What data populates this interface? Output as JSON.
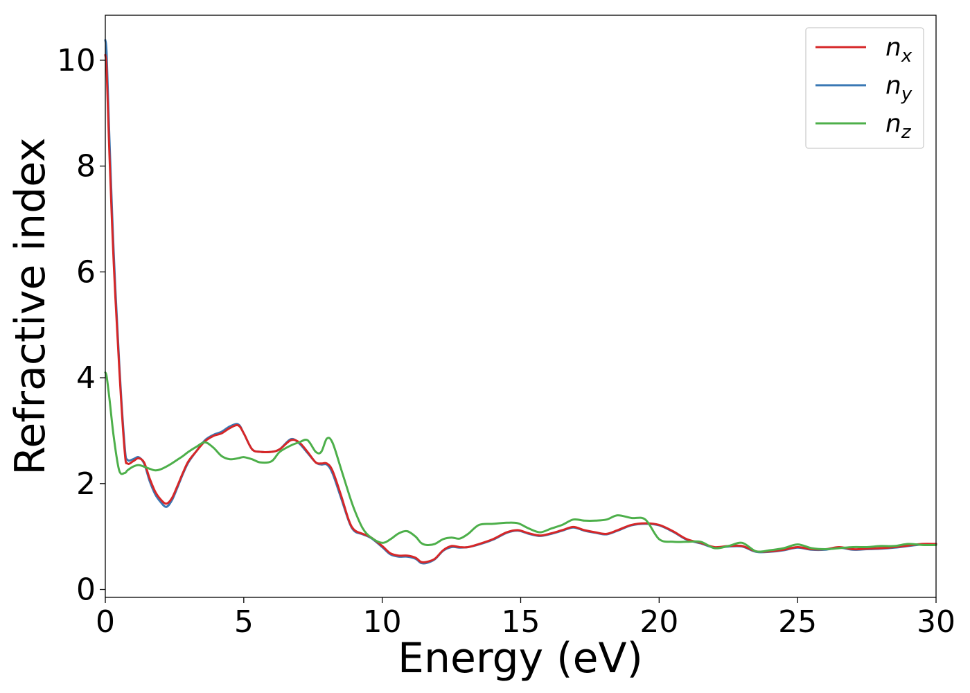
{
  "chart_data": {
    "type": "line",
    "title": "",
    "xlabel": "Energy (eV)",
    "ylabel": "Refractive index",
    "xlim": [
      0,
      30
    ],
    "ylim": [
      -0.15,
      10.85
    ],
    "xticks": [
      0,
      5,
      10,
      15,
      20,
      25,
      30
    ],
    "yticks": [
      0,
      2,
      4,
      6,
      8,
      10
    ],
    "grid": false,
    "legend": "top-right",
    "series": [
      {
        "name": "n",
        "subscript": "x",
        "color": "#d62728",
        "x": [
          0,
          0.05,
          0.15,
          0.3,
          0.5,
          0.7,
          0.8,
          1.0,
          1.2,
          1.4,
          1.6,
          1.8,
          2.0,
          2.2,
          2.4,
          2.6,
          2.8,
          3.0,
          3.3,
          3.6,
          3.9,
          4.2,
          4.5,
          4.8,
          5.0,
          5.3,
          5.6,
          6.0,
          6.3,
          6.7,
          7.0,
          7.3,
          7.6,
          7.8,
          8.0,
          8.2,
          8.5,
          8.8,
          9.0,
          9.3,
          9.6,
          10.0,
          10.3,
          10.6,
          10.9,
          11.2,
          11.4,
          11.6,
          11.9,
          12.2,
          12.5,
          12.8,
          13.1,
          13.5,
          14.0,
          14.5,
          14.9,
          15.3,
          15.7,
          16.1,
          16.5,
          16.9,
          17.3,
          17.7,
          18.1,
          18.5,
          19.0,
          19.5,
          20.0,
          20.5,
          21.0,
          21.5,
          22.0,
          22.5,
          23.0,
          23.5,
          24.0,
          24.5,
          25.0,
          25.5,
          26.0,
          26.5,
          27.0,
          27.5,
          28.0,
          28.5,
          29.0,
          29.5,
          30.0
        ],
        "values": [
          10.1,
          9.8,
          8.2,
          6.2,
          4.2,
          2.6,
          2.38,
          2.42,
          2.48,
          2.4,
          2.1,
          1.85,
          1.7,
          1.62,
          1.72,
          1.95,
          2.2,
          2.42,
          2.62,
          2.8,
          2.9,
          2.95,
          3.05,
          3.1,
          2.95,
          2.65,
          2.6,
          2.6,
          2.65,
          2.82,
          2.78,
          2.6,
          2.4,
          2.38,
          2.38,
          2.25,
          1.8,
          1.3,
          1.12,
          1.05,
          0.98,
          0.82,
          0.68,
          0.64,
          0.64,
          0.6,
          0.52,
          0.52,
          0.58,
          0.74,
          0.82,
          0.8,
          0.8,
          0.86,
          0.95,
          1.08,
          1.12,
          1.06,
          1.02,
          1.06,
          1.12,
          1.18,
          1.12,
          1.08,
          1.05,
          1.12,
          1.22,
          1.25,
          1.22,
          1.1,
          0.95,
          0.88,
          0.8,
          0.82,
          0.82,
          0.72,
          0.72,
          0.75,
          0.8,
          0.76,
          0.76,
          0.8,
          0.76,
          0.77,
          0.78,
          0.8,
          0.83,
          0.86,
          0.86
        ]
      },
      {
        "name": "n",
        "subscript": "y",
        "color": "#3a78b4",
        "x": [
          0,
          0.05,
          0.15,
          0.3,
          0.5,
          0.7,
          0.8,
          1.0,
          1.2,
          1.4,
          1.6,
          1.8,
          2.0,
          2.2,
          2.4,
          2.6,
          2.8,
          3.0,
          3.3,
          3.6,
          3.9,
          4.2,
          4.5,
          4.8,
          5.0,
          5.3,
          5.6,
          6.0,
          6.3,
          6.7,
          7.0,
          7.3,
          7.6,
          7.8,
          8.0,
          8.2,
          8.5,
          8.8,
          9.0,
          9.3,
          9.6,
          10.0,
          10.3,
          10.6,
          10.9,
          11.2,
          11.4,
          11.6,
          11.9,
          12.2,
          12.5,
          12.8,
          13.1,
          13.5,
          14.0,
          14.5,
          14.9,
          15.3,
          15.7,
          16.1,
          16.5,
          16.9,
          17.3,
          17.7,
          18.1,
          18.5,
          19.0,
          19.5,
          20.0,
          20.5,
          21.0,
          21.5,
          22.0,
          22.5,
          23.0,
          23.5,
          24.0,
          24.5,
          25.0,
          25.5,
          26.0,
          26.5,
          27.0,
          27.5,
          28.0,
          28.5,
          29.0,
          29.5,
          30.0
        ],
        "values": [
          10.38,
          10.1,
          8.5,
          6.4,
          4.3,
          2.7,
          2.45,
          2.46,
          2.5,
          2.38,
          2.05,
          1.8,
          1.65,
          1.56,
          1.68,
          1.92,
          2.18,
          2.4,
          2.62,
          2.82,
          2.92,
          2.98,
          3.08,
          3.12,
          2.95,
          2.65,
          2.6,
          2.6,
          2.65,
          2.84,
          2.76,
          2.58,
          2.4,
          2.36,
          2.36,
          2.2,
          1.75,
          1.28,
          1.1,
          1.04,
          0.97,
          0.8,
          0.66,
          0.62,
          0.62,
          0.58,
          0.5,
          0.5,
          0.57,
          0.73,
          0.8,
          0.79,
          0.8,
          0.85,
          0.94,
          1.07,
          1.11,
          1.05,
          1.01,
          1.05,
          1.11,
          1.17,
          1.11,
          1.07,
          1.04,
          1.11,
          1.21,
          1.24,
          1.21,
          1.09,
          0.94,
          0.87,
          0.79,
          0.81,
          0.81,
          0.71,
          0.71,
          0.74,
          0.79,
          0.75,
          0.75,
          0.79,
          0.75,
          0.76,
          0.77,
          0.79,
          0.82,
          0.85,
          0.86
        ]
      },
      {
        "name": "n",
        "subscript": "z",
        "color": "#4daf4a",
        "x": [
          0,
          0.05,
          0.15,
          0.3,
          0.5,
          0.7,
          0.8,
          1.0,
          1.2,
          1.4,
          1.6,
          1.8,
          2.0,
          2.2,
          2.4,
          2.6,
          2.8,
          3.0,
          3.3,
          3.6,
          3.9,
          4.2,
          4.5,
          4.8,
          5.0,
          5.3,
          5.6,
          6.0,
          6.3,
          6.7,
          7.0,
          7.3,
          7.6,
          7.8,
          8.0,
          8.2,
          8.5,
          8.8,
          9.0,
          9.3,
          9.6,
          10.0,
          10.3,
          10.6,
          10.9,
          11.2,
          11.4,
          11.6,
          11.9,
          12.2,
          12.5,
          12.8,
          13.1,
          13.5,
          14.0,
          14.5,
          14.9,
          15.3,
          15.7,
          16.1,
          16.5,
          16.9,
          17.3,
          17.7,
          18.1,
          18.5,
          19.0,
          19.5,
          20.0,
          20.5,
          21.0,
          21.5,
          22.0,
          22.5,
          23.0,
          23.5,
          24.0,
          24.5,
          25.0,
          25.5,
          26.0,
          26.5,
          27.0,
          27.5,
          28.0,
          28.5,
          29.0,
          29.5,
          30.0
        ],
        "values": [
          4.1,
          4.02,
          3.6,
          2.9,
          2.25,
          2.2,
          2.25,
          2.32,
          2.35,
          2.32,
          2.28,
          2.25,
          2.27,
          2.32,
          2.38,
          2.45,
          2.52,
          2.6,
          2.7,
          2.78,
          2.68,
          2.52,
          2.46,
          2.48,
          2.5,
          2.46,
          2.4,
          2.42,
          2.6,
          2.72,
          2.78,
          2.82,
          2.6,
          2.6,
          2.85,
          2.78,
          2.3,
          1.8,
          1.5,
          1.15,
          0.98,
          0.88,
          0.95,
          1.06,
          1.1,
          1.0,
          0.88,
          0.84,
          0.86,
          0.95,
          0.98,
          0.96,
          1.05,
          1.22,
          1.24,
          1.26,
          1.25,
          1.15,
          1.08,
          1.15,
          1.22,
          1.32,
          1.3,
          1.3,
          1.32,
          1.4,
          1.35,
          1.32,
          0.95,
          0.9,
          0.9,
          0.9,
          0.78,
          0.82,
          0.88,
          0.72,
          0.74,
          0.78,
          0.85,
          0.78,
          0.76,
          0.78,
          0.8,
          0.8,
          0.82,
          0.82,
          0.86,
          0.84,
          0.84
        ]
      }
    ]
  }
}
